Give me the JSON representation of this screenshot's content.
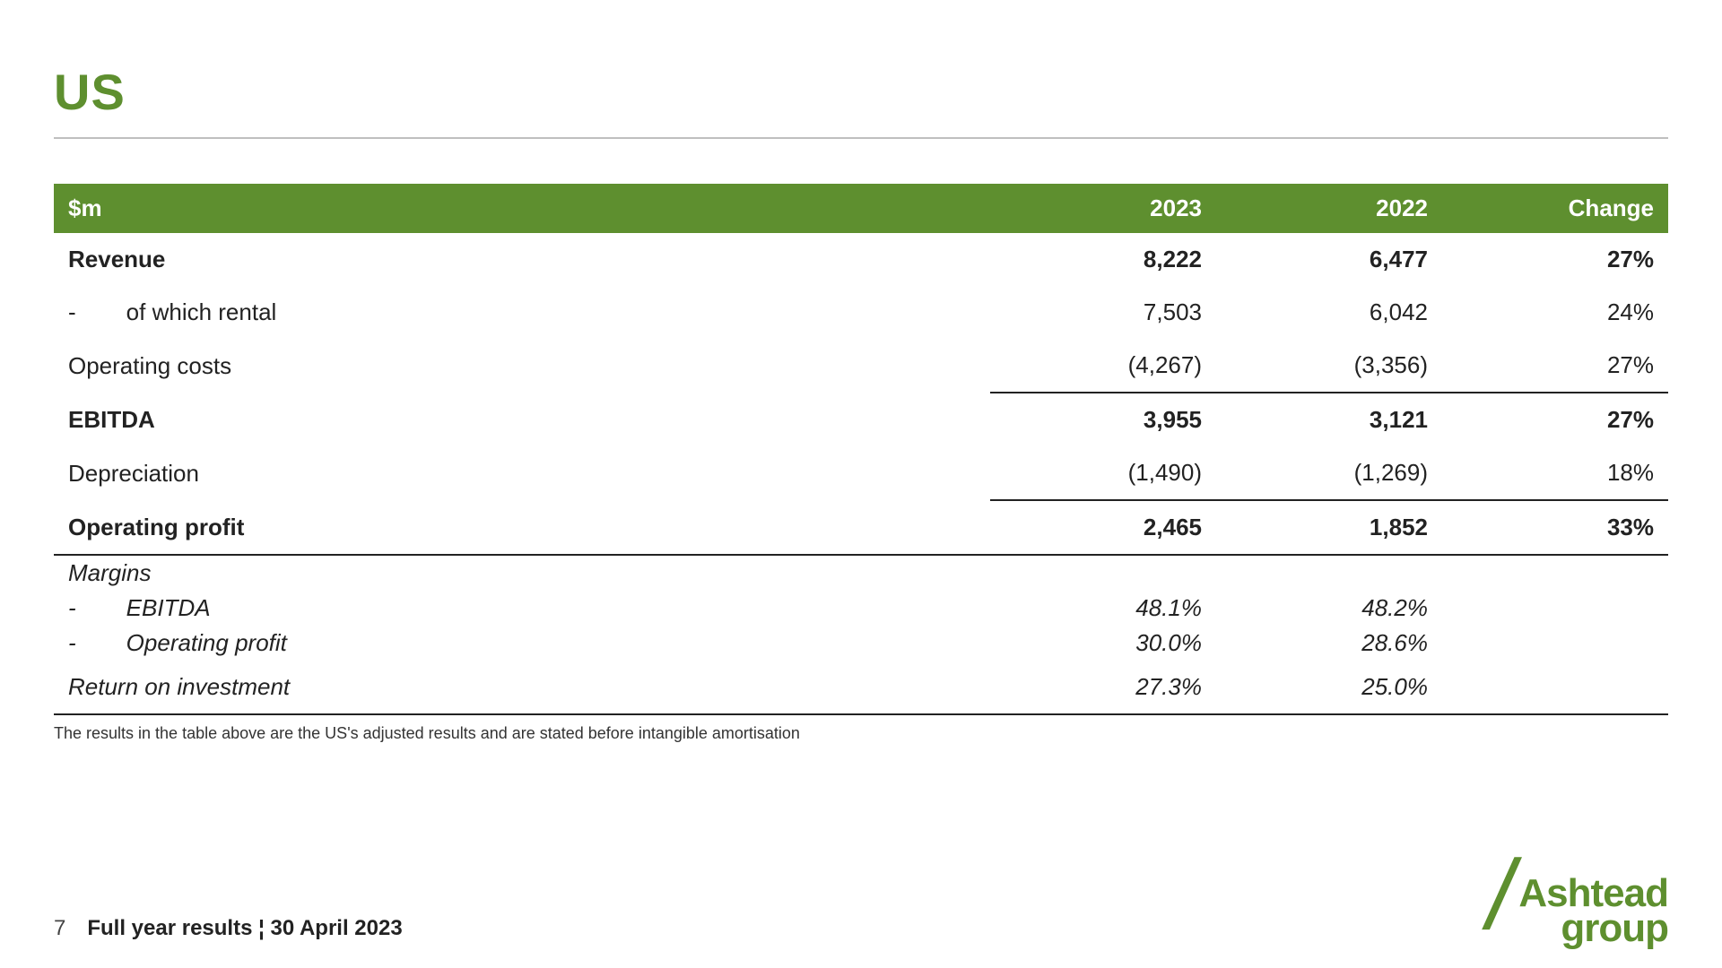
{
  "colors": {
    "brand_green": "#5e8f2f",
    "header_green": "#5e8f2f",
    "text": "#222222",
    "rule": "#bfbfbf",
    "background": "#ffffff"
  },
  "title": "US",
  "table": {
    "header": {
      "c0": "$m",
      "c1": "2023",
      "c2": "2022",
      "c3": "Change"
    },
    "rows": {
      "revenue": {
        "label": "Revenue",
        "y2023": "8,222",
        "y2022": "6,477",
        "change": "27%"
      },
      "rental": {
        "label": "of which rental",
        "y2023": "7,503",
        "y2022": "6,042",
        "change": "24%"
      },
      "opcosts": {
        "label": "Operating costs",
        "y2023": "(4,267)",
        "y2022": "(3,356)",
        "change": "27%"
      },
      "ebitda": {
        "label": "EBITDA",
        "y2023": "3,955",
        "y2022": "3,121",
        "change": "27%"
      },
      "depreciation": {
        "label": "Depreciation",
        "y2023": "(1,490)",
        "y2022": "(1,269)",
        "change": "18%"
      },
      "opprofit": {
        "label": "Operating profit",
        "y2023": "2,465",
        "y2022": "1,852",
        "change": "33%"
      },
      "margins_header": {
        "label": "Margins"
      },
      "m_ebitda": {
        "label": "EBITDA",
        "y2023": "48.1%",
        "y2022": "48.2%",
        "change": ""
      },
      "m_opprofit": {
        "label": "Operating profit",
        "y2023": "30.0%",
        "y2022": "28.6%",
        "change": ""
      },
      "roi": {
        "label": "Return on investment",
        "y2023": "27.3%",
        "y2022": "25.0%",
        "change": ""
      }
    }
  },
  "footnote": "The results in the table above are the US's adjusted results and are stated before intangible amortisation",
  "footer": {
    "page": "7",
    "text": "Full year results ¦ 30 April 2023"
  },
  "logo": {
    "line1": "Ashtead",
    "line2": "group"
  }
}
